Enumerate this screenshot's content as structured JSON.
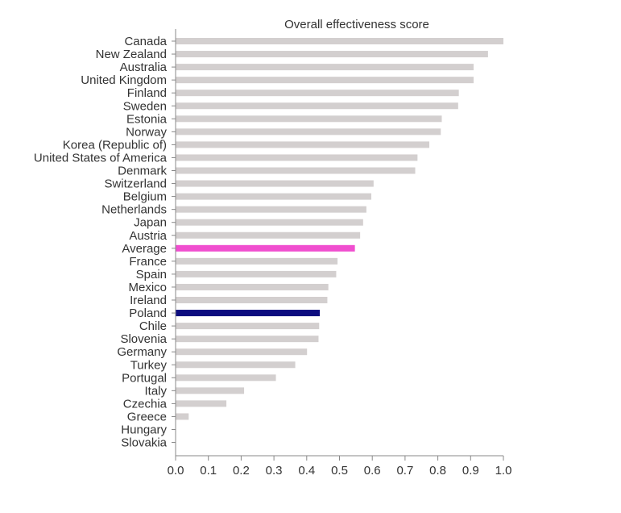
{
  "chart_data": {
    "type": "bar",
    "orientation": "horizontal",
    "title": "Overall effectiveness score",
    "xlabel": "",
    "ylabel": "",
    "xlim": [
      0,
      1.0
    ],
    "x_ticks": [
      "0.0",
      "0.1",
      "0.2",
      "0.3",
      "0.4",
      "0.5",
      "0.6",
      "0.7",
      "0.8",
      "0.9",
      "1.0"
    ],
    "grid": false,
    "legend": "none",
    "categories": [
      "Canada",
      "New Zealand",
      "Australia",
      "United Kingdom",
      "Finland",
      "Sweden",
      "Estonia",
      "Norway",
      "Korea (Republic of)",
      "United States of America",
      "Denmark",
      "Switzerland",
      "Belgium",
      "Netherlands",
      "Japan",
      "Austria",
      "Average",
      "France",
      "Spain",
      "Mexico",
      "Ireland",
      "Poland",
      "Chile",
      "Slovenia",
      "Germany",
      "Turkey",
      "Portugal",
      "Italy",
      "Czechia",
      "Greece",
      "Hungary",
      "Slovakia"
    ],
    "values": [
      1.0,
      0.953,
      0.909,
      0.909,
      0.864,
      0.862,
      0.812,
      0.809,
      0.774,
      0.738,
      0.731,
      0.604,
      0.597,
      0.582,
      0.572,
      0.563,
      0.547,
      0.494,
      0.49,
      0.466,
      0.463,
      0.44,
      0.438,
      0.436,
      0.401,
      0.365,
      0.306,
      0.209,
      0.155,
      0.04,
      0.0,
      0.0
    ],
    "colors": {
      "default": "#d3cfcf",
      "Average": "#f04ecf",
      "Poland": "#0c0c7f"
    }
  }
}
